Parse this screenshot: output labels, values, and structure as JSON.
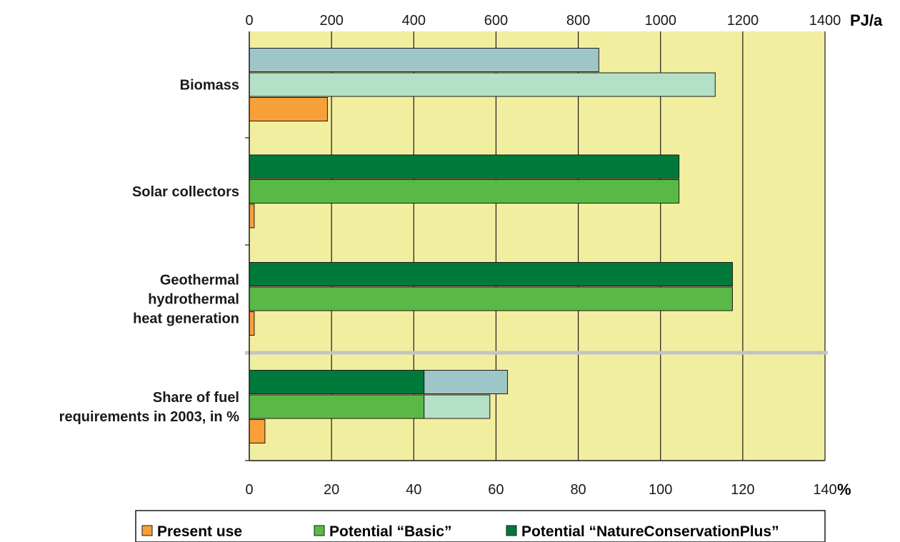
{
  "chart_data": {
    "type": "bar",
    "orientation": "horizontal",
    "top_axis": {
      "unit": "PJ/a",
      "range": [
        0,
        1400
      ],
      "ticks": [
        "0",
        "200",
        "400",
        "600",
        "800",
        "1000",
        "1200",
        "1400"
      ]
    },
    "bottom_axis": {
      "unit": "%",
      "range": [
        0,
        140
      ],
      "ticks": [
        "0",
        "20",
        "40",
        "60",
        "80",
        "100",
        "120",
        "140"
      ]
    },
    "grid": true,
    "categories": [
      {
        "label_lines": [
          "Biomass"
        ],
        "axis": "top",
        "bars": [
          {
            "series": "Potential “NatureConservationPlus”",
            "value": 850,
            "color": "#9ec5c8"
          },
          {
            "series": "Potential “Basic”",
            "value": 1133,
            "color": "#b4e0c8"
          },
          {
            "series": "Present use",
            "value": 190,
            "color": "#f7a038"
          }
        ]
      },
      {
        "label_lines": [
          "Solar collectors"
        ],
        "axis": "top",
        "bars": [
          {
            "series": "Potential “NatureConservationPlus”",
            "value": 1045,
            "color": "#007a3a"
          },
          {
            "series": "Potential “Basic”",
            "value": 1045,
            "color": "#5ab946"
          },
          {
            "series": "Present use",
            "value": 12,
            "color": "#f7a038"
          }
        ]
      },
      {
        "label_lines": [
          "Geothermal",
          "hydrothermal",
          "heat generation"
        ],
        "axis": "top",
        "bars": [
          {
            "series": "Potential “NatureConservationPlus”",
            "value": 1175,
            "color": "#007a3a"
          },
          {
            "series": "Potential “Basic”",
            "value": 1175,
            "color": "#5ab946"
          },
          {
            "series": "Present use",
            "value": 12,
            "color": "#f7a038"
          }
        ]
      },
      {
        "label_lines": [
          "Share of fuel",
          "requirements in 2003, in %"
        ],
        "axis": "bottom",
        "bars": [
          {
            "series": "Potential “NatureConservationPlus”",
            "segments": [
              {
                "value": 42.5,
                "color": "#007a3a"
              },
              {
                "value": 20.3,
                "color": "#9ec5c8"
              }
            ]
          },
          {
            "series": "Potential “Basic”",
            "segments": [
              {
                "value": 42.5,
                "color": "#5ab946"
              },
              {
                "value": 16.0,
                "color": "#b4e0c8"
              }
            ]
          },
          {
            "series": "Present use",
            "value": 3.8,
            "color": "#f7a038"
          }
        ]
      }
    ],
    "legend": {
      "position": "bottom",
      "items": [
        {
          "label": "Present use",
          "color": "#f7a038"
        },
        {
          "label": "Potential “Basic”",
          "color": "#5ab946"
        },
        {
          "label": "Potential “NatureConservationPlus”",
          "color": "#007a3a"
        }
      ]
    },
    "colors": {
      "plot_background": "#f2ee9f",
      "separator": "#c4c4c4",
      "grid": "#1a1a1a"
    }
  }
}
